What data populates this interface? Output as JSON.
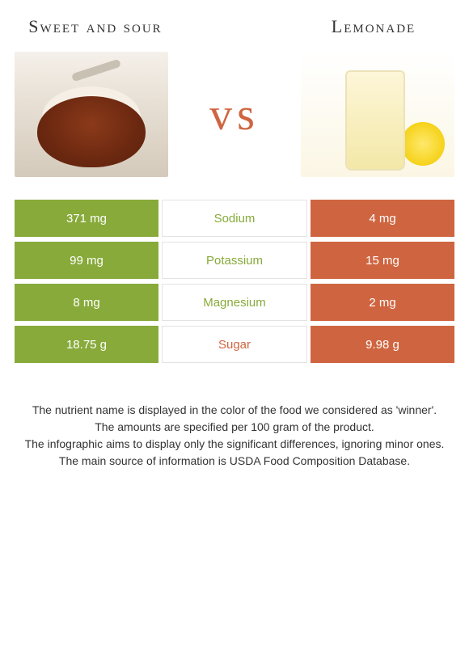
{
  "titles": {
    "left": "Sweet and sour",
    "right": "Lemonade"
  },
  "vs": "vs",
  "colors": {
    "left_bar": "#87aa3a",
    "right_bar": "#cf6540",
    "mid_border": "#e3e3e3",
    "winner_text_left": "#87aa3a",
    "winner_text_right": "#cf6540"
  },
  "rows": [
    {
      "left": "371 mg",
      "label": "Sodium",
      "right": "4 mg",
      "winner": "left"
    },
    {
      "left": "99 mg",
      "label": "Potassium",
      "right": "15 mg",
      "winner": "left"
    },
    {
      "left": "8 mg",
      "label": "Magnesium",
      "right": "2 mg",
      "winner": "left"
    },
    {
      "left": "18.75 g",
      "label": "Sugar",
      "right": "9.98 g",
      "winner": "right"
    }
  ],
  "footer": [
    "The nutrient name is displayed in the color of the food we considered as 'winner'.",
    "The amounts are specified per 100 gram of the product.",
    "The infographic aims to display only the significant differences, ignoring minor ones.",
    "The main source of information is USDA Food Composition Database."
  ]
}
